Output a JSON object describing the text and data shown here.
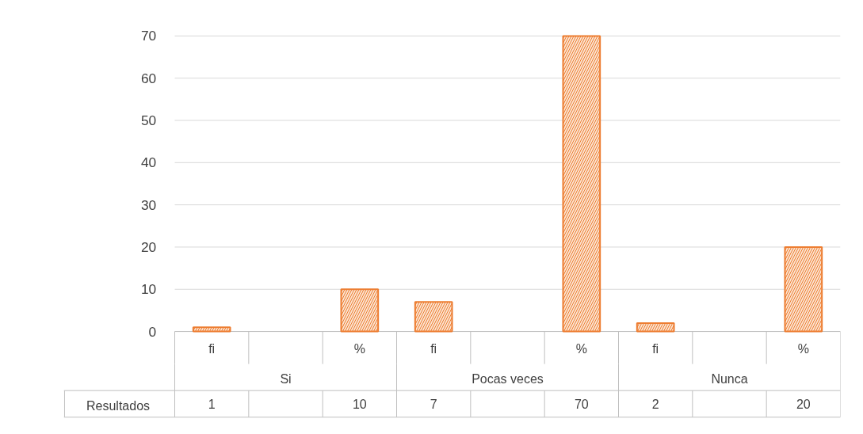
{
  "chart_data": {
    "type": "bar",
    "categories": [
      "fi",
      null,
      "%",
      "fi",
      null,
      "%",
      "fi",
      null,
      "%"
    ],
    "series": [
      {
        "name": "Resultados",
        "color": "#ed7d31",
        "values": [
          1,
          null,
          10,
          7,
          null,
          70,
          2,
          null,
          20
        ]
      }
    ],
    "annotations": [
      "Si",
      "Pocas veces",
      "Nunca"
    ],
    "ylim": [
      0,
      70
    ],
    "yticks": [
      0,
      10,
      20,
      30,
      40,
      50,
      60,
      70
    ],
    "grid": "y",
    "legend": "bottom",
    "data_labels": true
  }
}
